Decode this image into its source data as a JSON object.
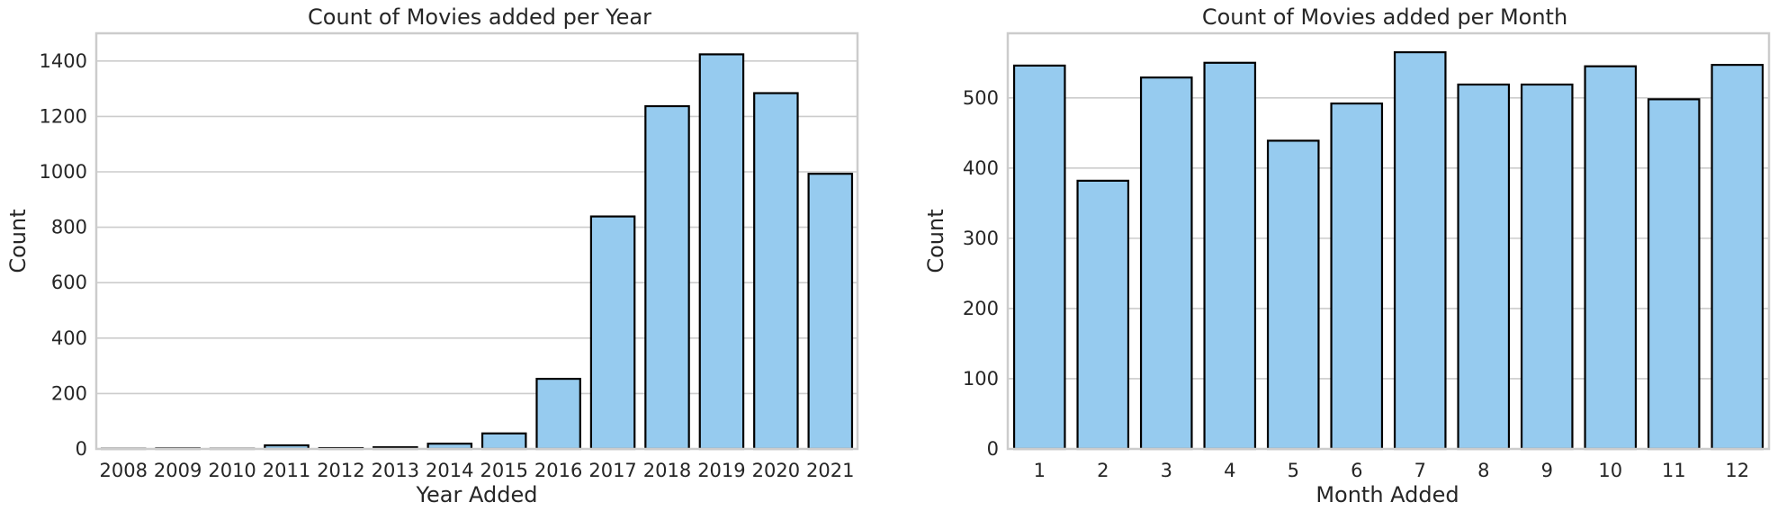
{
  "figure": {
    "bar_color": "#96cbef",
    "edge_color": "#000000",
    "grid_color": "#cccccc"
  },
  "chart_data": [
    {
      "type": "bar",
      "title": "Count of Movies added per Year",
      "xlabel": "Year Added",
      "ylabel": "Count",
      "categories": [
        "2008",
        "2009",
        "2010",
        "2011",
        "2012",
        "2013",
        "2014",
        "2015",
        "2016",
        "2017",
        "2018",
        "2019",
        "2020",
        "2021"
      ],
      "values": [
        1,
        2,
        1,
        13,
        3,
        6,
        19,
        56,
        253,
        839,
        1237,
        1424,
        1284,
        993
      ],
      "ylim": [
        0,
        1500
      ],
      "yticks": [
        0,
        200,
        400,
        600,
        800,
        1000,
        1200,
        1400
      ],
      "grid": "horizontal",
      "legend": "none"
    },
    {
      "type": "bar",
      "title": "Count of Movies added per Month",
      "xlabel": "Month Added",
      "ylabel": "Count",
      "categories": [
        "1",
        "2",
        "3",
        "4",
        "5",
        "6",
        "7",
        "8",
        "9",
        "10",
        "11",
        "12"
      ],
      "values": [
        546,
        382,
        529,
        550,
        439,
        492,
        565,
        519,
        519,
        545,
        498,
        547
      ],
      "ylim": [
        0,
        592
      ],
      "yticks": [
        0,
        100,
        200,
        300,
        400,
        500
      ],
      "grid": "horizontal",
      "legend": "none"
    }
  ]
}
